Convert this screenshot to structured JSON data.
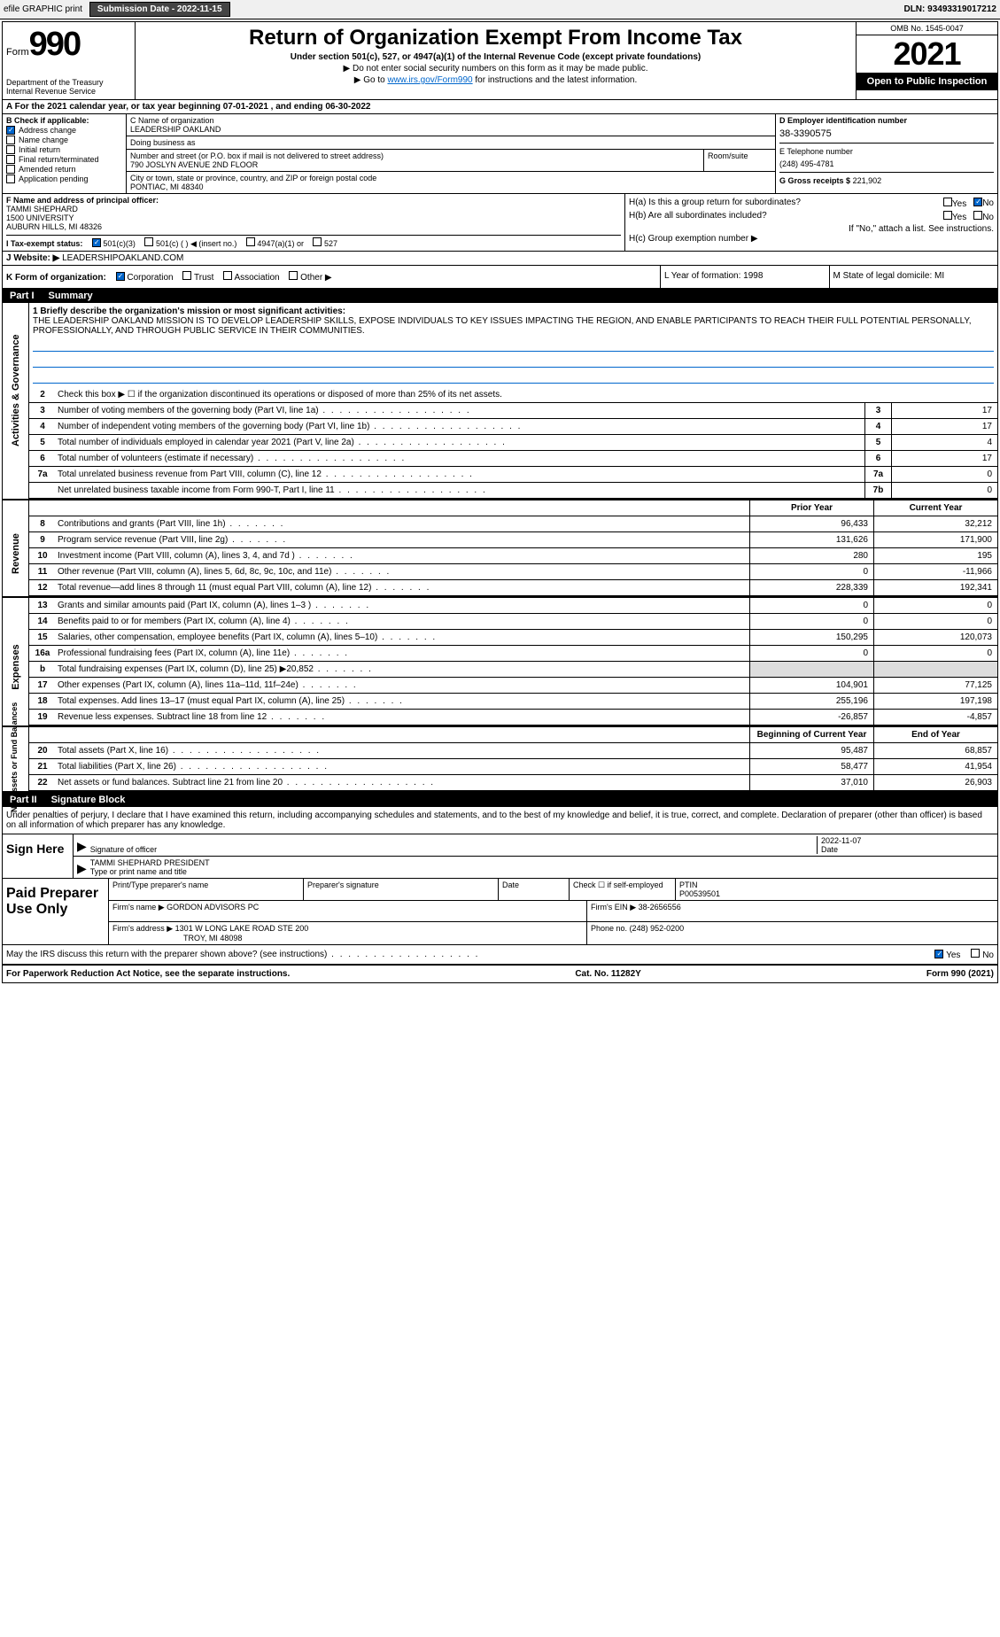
{
  "topbar": {
    "efile": "efile GRAPHIC print",
    "submission": "Submission Date - 2022-11-15",
    "dln": "DLN: 93493319017212"
  },
  "header": {
    "form_word": "Form",
    "form_num": "990",
    "dept": "Department of the Treasury",
    "irs": "Internal Revenue Service",
    "title": "Return of Organization Exempt From Income Tax",
    "subtitle": "Under section 501(c), 527, or 4947(a)(1) of the Internal Revenue Code (except private foundations)",
    "instruct1": "▶ Do not enter social security numbers on this form as it may be made public.",
    "instruct2_pre": "▶ Go to ",
    "instruct2_link": "www.irs.gov/Form990",
    "instruct2_post": " for instructions and the latest information.",
    "omb": "OMB No. 1545-0047",
    "year": "2021",
    "open": "Open to Public Inspection"
  },
  "rowA": "A For the 2021 calendar year, or tax year beginning 07-01-2021    , and ending 06-30-2022",
  "boxB": {
    "label": "B Check if applicable:",
    "items": [
      "Address change",
      "Name change",
      "Initial return",
      "Final return/terminated",
      "Amended return",
      "Application pending"
    ]
  },
  "boxC": {
    "name_label": "C Name of organization",
    "name": "LEADERSHIP OAKLAND",
    "dba_label": "Doing business as",
    "dba": "",
    "addr_label": "Number and street (or P.O. box if mail is not delivered to street address)",
    "addr": "790 JOSLYN AVENUE 2ND FLOOR",
    "room_label": "Room/suite",
    "city_label": "City or town, state or province, country, and ZIP or foreign postal code",
    "city": "PONTIAC, MI  48340"
  },
  "boxD": {
    "label": "D Employer identification number",
    "ein": "38-3390575",
    "phone_label": "E Telephone number",
    "phone": "(248) 495-4781",
    "gross_label": "G Gross receipts $",
    "gross": "221,902"
  },
  "boxF": {
    "label": "F Name and address of principal officer:",
    "name": "TAMMI SHEPHARD",
    "addr1": "1500 UNIVERSITY",
    "addr2": "AUBURN HILLS, MI  48326"
  },
  "boxH": {
    "a": "H(a)  Is this a group return for subordinates?",
    "b": "H(b)  Are all subordinates included?",
    "b2": "If \"No,\" attach a list. See instructions.",
    "c": "H(c)  Group exemption number ▶",
    "yes": "Yes",
    "no": "No"
  },
  "boxI": "I  Tax-exempt status:",
  "i_opts": [
    "501(c)(3)",
    "501(c) (   ) ◀ (insert no.)",
    "4947(a)(1) or",
    "527"
  ],
  "boxJ_label": "J  Website: ▶",
  "boxJ": "  LEADERSHIPOAKLAND.COM",
  "boxK": "K Form of organization:",
  "k_opts": [
    "Corporation",
    "Trust",
    "Association",
    "Other ▶"
  ],
  "boxL": "L Year of formation: 1998",
  "boxM": "M State of legal domicile: MI",
  "part1": {
    "label": "Part I",
    "title": "Summary",
    "side_gov": "Activities & Governance",
    "side_rev": "Revenue",
    "side_exp": "Expenses",
    "side_net": "Net Assets or Fund Balances",
    "l1": "1 Briefly describe the organization's mission or most significant activities:",
    "mission": "THE LEADERSHIP OAKLAND MISSION IS TO DEVELOP LEADERSHIP SKILLS, EXPOSE INDIVIDUALS TO KEY ISSUES IMPACTING THE REGION, AND ENABLE PARTICIPANTS TO REACH THEIR FULL POTENTIAL PERSONALLY, PROFESSIONALLY, AND THROUGH PUBLIC SERVICE IN THEIR COMMUNITIES.",
    "l2": "Check this box ▶ ☐ if the organization discontinued its operations or disposed of more than 25% of its net assets.",
    "prior": "Prior Year",
    "current": "Current Year",
    "begin": "Beginning of Current Year",
    "end": "End of Year"
  },
  "lines_gov": [
    {
      "n": "3",
      "t": "Number of voting members of the governing body (Part VI, line 1a)",
      "b": "3",
      "v": "17"
    },
    {
      "n": "4",
      "t": "Number of independent voting members of the governing body (Part VI, line 1b)",
      "b": "4",
      "v": "17"
    },
    {
      "n": "5",
      "t": "Total number of individuals employed in calendar year 2021 (Part V, line 2a)",
      "b": "5",
      "v": "4"
    },
    {
      "n": "6",
      "t": "Total number of volunteers (estimate if necessary)",
      "b": "6",
      "v": "17"
    },
    {
      "n": "7a",
      "t": "Total unrelated business revenue from Part VIII, column (C), line 12",
      "b": "7a",
      "v": "0"
    },
    {
      "n": "",
      "t": "Net unrelated business taxable income from Form 990-T, Part I, line 11",
      "b": "7b",
      "v": "0"
    }
  ],
  "lines_rev": [
    {
      "n": "8",
      "t": "Contributions and grants (Part VIII, line 1h)",
      "p": "96,433",
      "c": "32,212"
    },
    {
      "n": "9",
      "t": "Program service revenue (Part VIII, line 2g)",
      "p": "131,626",
      "c": "171,900"
    },
    {
      "n": "10",
      "t": "Investment income (Part VIII, column (A), lines 3, 4, and 7d )",
      "p": "280",
      "c": "195"
    },
    {
      "n": "11",
      "t": "Other revenue (Part VIII, column (A), lines 5, 6d, 8c, 9c, 10c, and 11e)",
      "p": "0",
      "c": "-11,966"
    },
    {
      "n": "12",
      "t": "Total revenue—add lines 8 through 11 (must equal Part VIII, column (A), line 12)",
      "p": "228,339",
      "c": "192,341"
    }
  ],
  "lines_exp": [
    {
      "n": "13",
      "t": "Grants and similar amounts paid (Part IX, column (A), lines 1–3 )",
      "p": "0",
      "c": "0"
    },
    {
      "n": "14",
      "t": "Benefits paid to or for members (Part IX, column (A), line 4)",
      "p": "0",
      "c": "0"
    },
    {
      "n": "15",
      "t": "Salaries, other compensation, employee benefits (Part IX, column (A), lines 5–10)",
      "p": "150,295",
      "c": "120,073"
    },
    {
      "n": "16a",
      "t": "Professional fundraising fees (Part IX, column (A), line 11e)",
      "p": "0",
      "c": "0"
    },
    {
      "n": "b",
      "t": "Total fundraising expenses (Part IX, column (D), line 25) ▶20,852",
      "p": "",
      "c": "",
      "shaded": true
    },
    {
      "n": "17",
      "t": "Other expenses (Part IX, column (A), lines 11a–11d, 11f–24e)",
      "p": "104,901",
      "c": "77,125"
    },
    {
      "n": "18",
      "t": "Total expenses. Add lines 13–17 (must equal Part IX, column (A), line 25)",
      "p": "255,196",
      "c": "197,198"
    },
    {
      "n": "19",
      "t": "Revenue less expenses. Subtract line 18 from line 12",
      "p": "-26,857",
      "c": "-4,857"
    }
  ],
  "lines_net": [
    {
      "n": "20",
      "t": "Total assets (Part X, line 16)",
      "p": "95,487",
      "c": "68,857"
    },
    {
      "n": "21",
      "t": "Total liabilities (Part X, line 26)",
      "p": "58,477",
      "c": "41,954"
    },
    {
      "n": "22",
      "t": "Net assets or fund balances. Subtract line 21 from line 20",
      "p": "37,010",
      "c": "26,903"
    }
  ],
  "part2": {
    "label": "Part II",
    "title": "Signature Block",
    "decl": "Under penalties of perjury, I declare that I have examined this return, including accompanying schedules and statements, and to the best of my knowledge and belief, it is true, correct, and complete. Declaration of preparer (other than officer) is based on all information of which preparer has any knowledge."
  },
  "sign": {
    "here": "Sign Here",
    "sig_label": "Signature of officer",
    "date_label": "Date",
    "date": "2022-11-07",
    "name": "TAMMI SHEPHARD  PRESIDENT",
    "name_label": "Type or print name and title"
  },
  "preparer": {
    "label": "Paid Preparer Use Only",
    "h1": "Print/Type preparer's name",
    "h2": "Preparer's signature",
    "h3": "Date",
    "h4": "Check ☐ if self-employed",
    "h5": "PTIN",
    "ptin": "P00539501",
    "firm_label": "Firm's name    ▶",
    "firm": "GORDON ADVISORS PC",
    "ein_label": "Firm's EIN ▶",
    "ein": "38-2656556",
    "addr_label": "Firm's address ▶",
    "addr1": "1301 W LONG LAKE ROAD STE 200",
    "addr2": "TROY, MI  48098",
    "phone_label": "Phone no.",
    "phone": "(248) 952-0200"
  },
  "discuss": "May the IRS discuss this return with the preparer shown above? (see instructions)",
  "footer": {
    "left": "For Paperwork Reduction Act Notice, see the separate instructions.",
    "mid": "Cat. No. 11282Y",
    "right": "Form 990 (2021)"
  }
}
